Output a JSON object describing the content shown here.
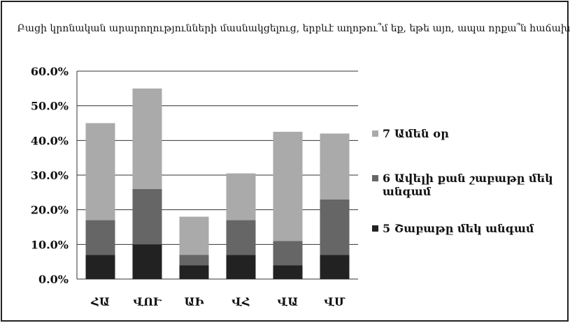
{
  "chart_data": {
    "type": "stacked_bar",
    "title": "Բացի կրոնական արարողությունների մասնակցելուց, երբևէ աղոթու՞մ եք, եթե այո, ապա որքա՞ն հաճախ",
    "categories": [
      "ՀԱ",
      "ՎՈՒ",
      "ԱԻ",
      "ՎՀ",
      "ՎԱ",
      "ՎՄ"
    ],
    "series": [
      {
        "name": "5 Շաբաթը մեկ անգամ",
        "color": "#222222",
        "values": [
          7,
          10,
          4,
          7,
          4,
          7
        ]
      },
      {
        "name": "6 Ավելի քան շաբաթը մեկ անգամ",
        "color": "#666666",
        "values": [
          10,
          16,
          3,
          10,
          7,
          16
        ]
      },
      {
        "name": "7 Ամեն օր",
        "color": "#aaaaaa",
        "values": [
          28,
          29,
          11,
          13.5,
          31.5,
          19
        ]
      }
    ],
    "ylim": [
      0,
      60
    ],
    "yticks": [
      {
        "value": 0,
        "label": "0.0%"
      },
      {
        "value": 10,
        "label": "10.0%"
      },
      {
        "value": 20,
        "label": "20.0%"
      },
      {
        "value": 30,
        "label": "30.0%"
      },
      {
        "value": 40,
        "label": "40.0%"
      },
      {
        "value": 50,
        "label": "50.0%"
      },
      {
        "value": 60,
        "label": "60.0%"
      }
    ],
    "grid": true
  }
}
